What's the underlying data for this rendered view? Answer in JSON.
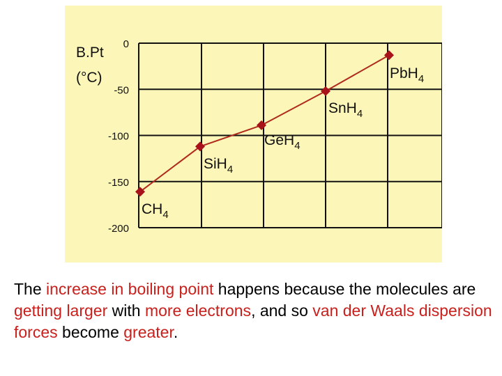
{
  "chart_data": {
    "type": "line",
    "ylabel_line1": "B.Pt",
    "ylabel_line2": "(°C)",
    "yticks": [
      0,
      -50,
      -100,
      -150,
      -200
    ],
    "ytick_labels": [
      "0",
      "-50",
      "-100",
      "-150",
      "-200"
    ],
    "ylim": [
      -200,
      0
    ],
    "grid": true,
    "points": [
      {
        "label": "CH",
        "sub": "4",
        "y": -161
      },
      {
        "label": "SiH",
        "sub": "4",
        "y": -112
      },
      {
        "label": "GeH",
        "sub": "4",
        "y": -89
      },
      {
        "label": "SnH",
        "sub": "4",
        "y": -52
      },
      {
        "label": "PbH",
        "sub": "4",
        "y": -13
      }
    ],
    "colors": {
      "background": "#fcf6b8",
      "grid": "#111111",
      "line": "#b02a1e",
      "marker": "#a8121a"
    }
  },
  "caption": {
    "segments": [
      {
        "text": "The ",
        "hl": false
      },
      {
        "text": "increase in boiling point",
        "hl": true
      },
      {
        "text": " happens because the molecules are ",
        "hl": false
      },
      {
        "text": "getting larger",
        "hl": true
      },
      {
        "text": " with ",
        "hl": false
      },
      {
        "text": "more electrons",
        "hl": true
      },
      {
        "text": ", and so ",
        "hl": false
      },
      {
        "text": "van der Waals dispersion forces",
        "hl": true
      },
      {
        "text": " become ",
        "hl": false
      },
      {
        "text": "greater",
        "hl": true
      },
      {
        "text": ".",
        "hl": false
      }
    ],
    "highlight_color": "#c8201c"
  }
}
